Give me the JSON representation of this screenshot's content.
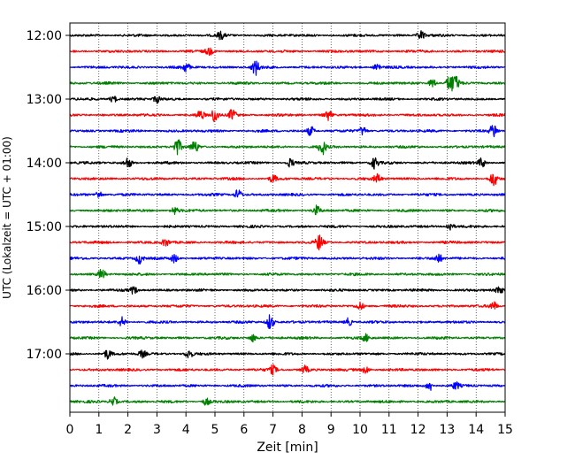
{
  "chart_data": {
    "type": "line",
    "title": "",
    "xlabel": "Zeit  [min]",
    "ylabel": "UTC (Lokalzeit = UTC + 01:00)",
    "xlim": [
      0,
      15
    ],
    "x_ticks": [
      "0",
      "1",
      "2",
      "3",
      "4",
      "5",
      "6",
      "7",
      "8",
      "9",
      "10",
      "11",
      "12",
      "13",
      "14",
      "15"
    ],
    "y_tick_labels": [
      "12:00",
      "13:00",
      "14:00",
      "15:00",
      "16:00",
      "17:00"
    ],
    "grid": {
      "vertical_dotted": true
    },
    "colors": [
      "#000000",
      "#ff0000",
      "#0000ff",
      "#008000"
    ],
    "traces": [
      {
        "time": "12:00",
        "color": "#000000",
        "events": [
          [
            12.1,
            1.6
          ],
          [
            5.2,
            1.2
          ]
        ]
      },
      {
        "time": "12:15",
        "color": "#ff0000",
        "events": [
          [
            4.8,
            1.2
          ]
        ]
      },
      {
        "time": "12:30",
        "color": "#0000ff",
        "events": [
          [
            6.4,
            2.5
          ],
          [
            4.0,
            1.6
          ],
          [
            10.6,
            1.4
          ]
        ]
      },
      {
        "time": "12:45",
        "color": "#008000",
        "events": [
          [
            13.1,
            2.8
          ],
          [
            13.3,
            2.2
          ],
          [
            12.5,
            1.5
          ]
        ]
      },
      {
        "time": "13:00",
        "color": "#000000",
        "events": [
          [
            1.5,
            1.2
          ],
          [
            3.0,
            1.2
          ]
        ]
      },
      {
        "time": "13:15",
        "color": "#ff0000",
        "events": [
          [
            5.0,
            2.5
          ],
          [
            5.6,
            2.0
          ],
          [
            8.9,
            1.8
          ],
          [
            4.5,
            1.6
          ]
        ]
      },
      {
        "time": "13:30",
        "color": "#0000ff",
        "events": [
          [
            14.6,
            2.5
          ],
          [
            8.3,
            1.6
          ],
          [
            10.1,
            1.5
          ]
        ]
      },
      {
        "time": "13:45",
        "color": "#008000",
        "events": [
          [
            3.7,
            3.0
          ],
          [
            8.7,
            2.5
          ],
          [
            4.3,
            2.0
          ]
        ]
      },
      {
        "time": "14:00",
        "color": "#000000",
        "events": [
          [
            2.0,
            1.8
          ],
          [
            10.5,
            2.0
          ],
          [
            14.2,
            1.6
          ],
          [
            7.6,
            1.4
          ]
        ]
      },
      {
        "time": "14:15",
        "color": "#ff0000",
        "events": [
          [
            14.6,
            2.5
          ],
          [
            10.6,
            1.6
          ],
          [
            7.0,
            1.3
          ]
        ]
      },
      {
        "time": "14:30",
        "color": "#0000ff",
        "events": [
          [
            5.8,
            1.8
          ],
          [
            1.0,
            1.3
          ]
        ]
      },
      {
        "time": "14:45",
        "color": "#008000",
        "events": [
          [
            8.5,
            1.6
          ],
          [
            3.6,
            1.3
          ]
        ]
      },
      {
        "time": "15:00",
        "color": "#000000",
        "events": [
          [
            13.1,
            1.5
          ]
        ]
      },
      {
        "time": "15:15",
        "color": "#ff0000",
        "events": [
          [
            8.6,
            2.6
          ],
          [
            3.3,
            1.3
          ]
        ]
      },
      {
        "time": "15:30",
        "color": "#0000ff",
        "events": [
          [
            2.4,
            1.8
          ],
          [
            12.7,
            1.6
          ],
          [
            3.6,
            1.4
          ]
        ]
      },
      {
        "time": "15:45",
        "color": "#008000",
        "events": [
          [
            1.1,
            1.8
          ]
        ]
      },
      {
        "time": "16:00",
        "color": "#000000",
        "events": [
          [
            2.2,
            1.3
          ],
          [
            14.8,
            1.3
          ]
        ]
      },
      {
        "time": "16:15",
        "color": "#ff0000",
        "events": [
          [
            14.6,
            1.5
          ],
          [
            10.0,
            1.3
          ]
        ]
      },
      {
        "time": "16:30",
        "color": "#0000ff",
        "events": [
          [
            6.9,
            2.8
          ],
          [
            1.8,
            1.6
          ],
          [
            9.6,
            1.4
          ]
        ]
      },
      {
        "time": "16:45",
        "color": "#008000",
        "events": [
          [
            6.3,
            1.3
          ],
          [
            10.2,
            1.2
          ]
        ]
      },
      {
        "time": "17:00",
        "color": "#000000",
        "events": [
          [
            1.3,
            1.6
          ],
          [
            4.1,
            1.5
          ],
          [
            2.5,
            1.2
          ]
        ]
      },
      {
        "time": "17:15",
        "color": "#ff0000",
        "events": [
          [
            7.0,
            1.5
          ],
          [
            8.1,
            1.3
          ],
          [
            10.2,
            1.3
          ]
        ]
      },
      {
        "time": "17:30",
        "color": "#0000ff",
        "events": [
          [
            12.4,
            1.8
          ],
          [
            13.3,
            1.2
          ]
        ]
      },
      {
        "time": "17:45",
        "color": "#008000",
        "events": [
          [
            1.5,
            1.6
          ],
          [
            4.7,
            1.2
          ]
        ]
      }
    ]
  }
}
